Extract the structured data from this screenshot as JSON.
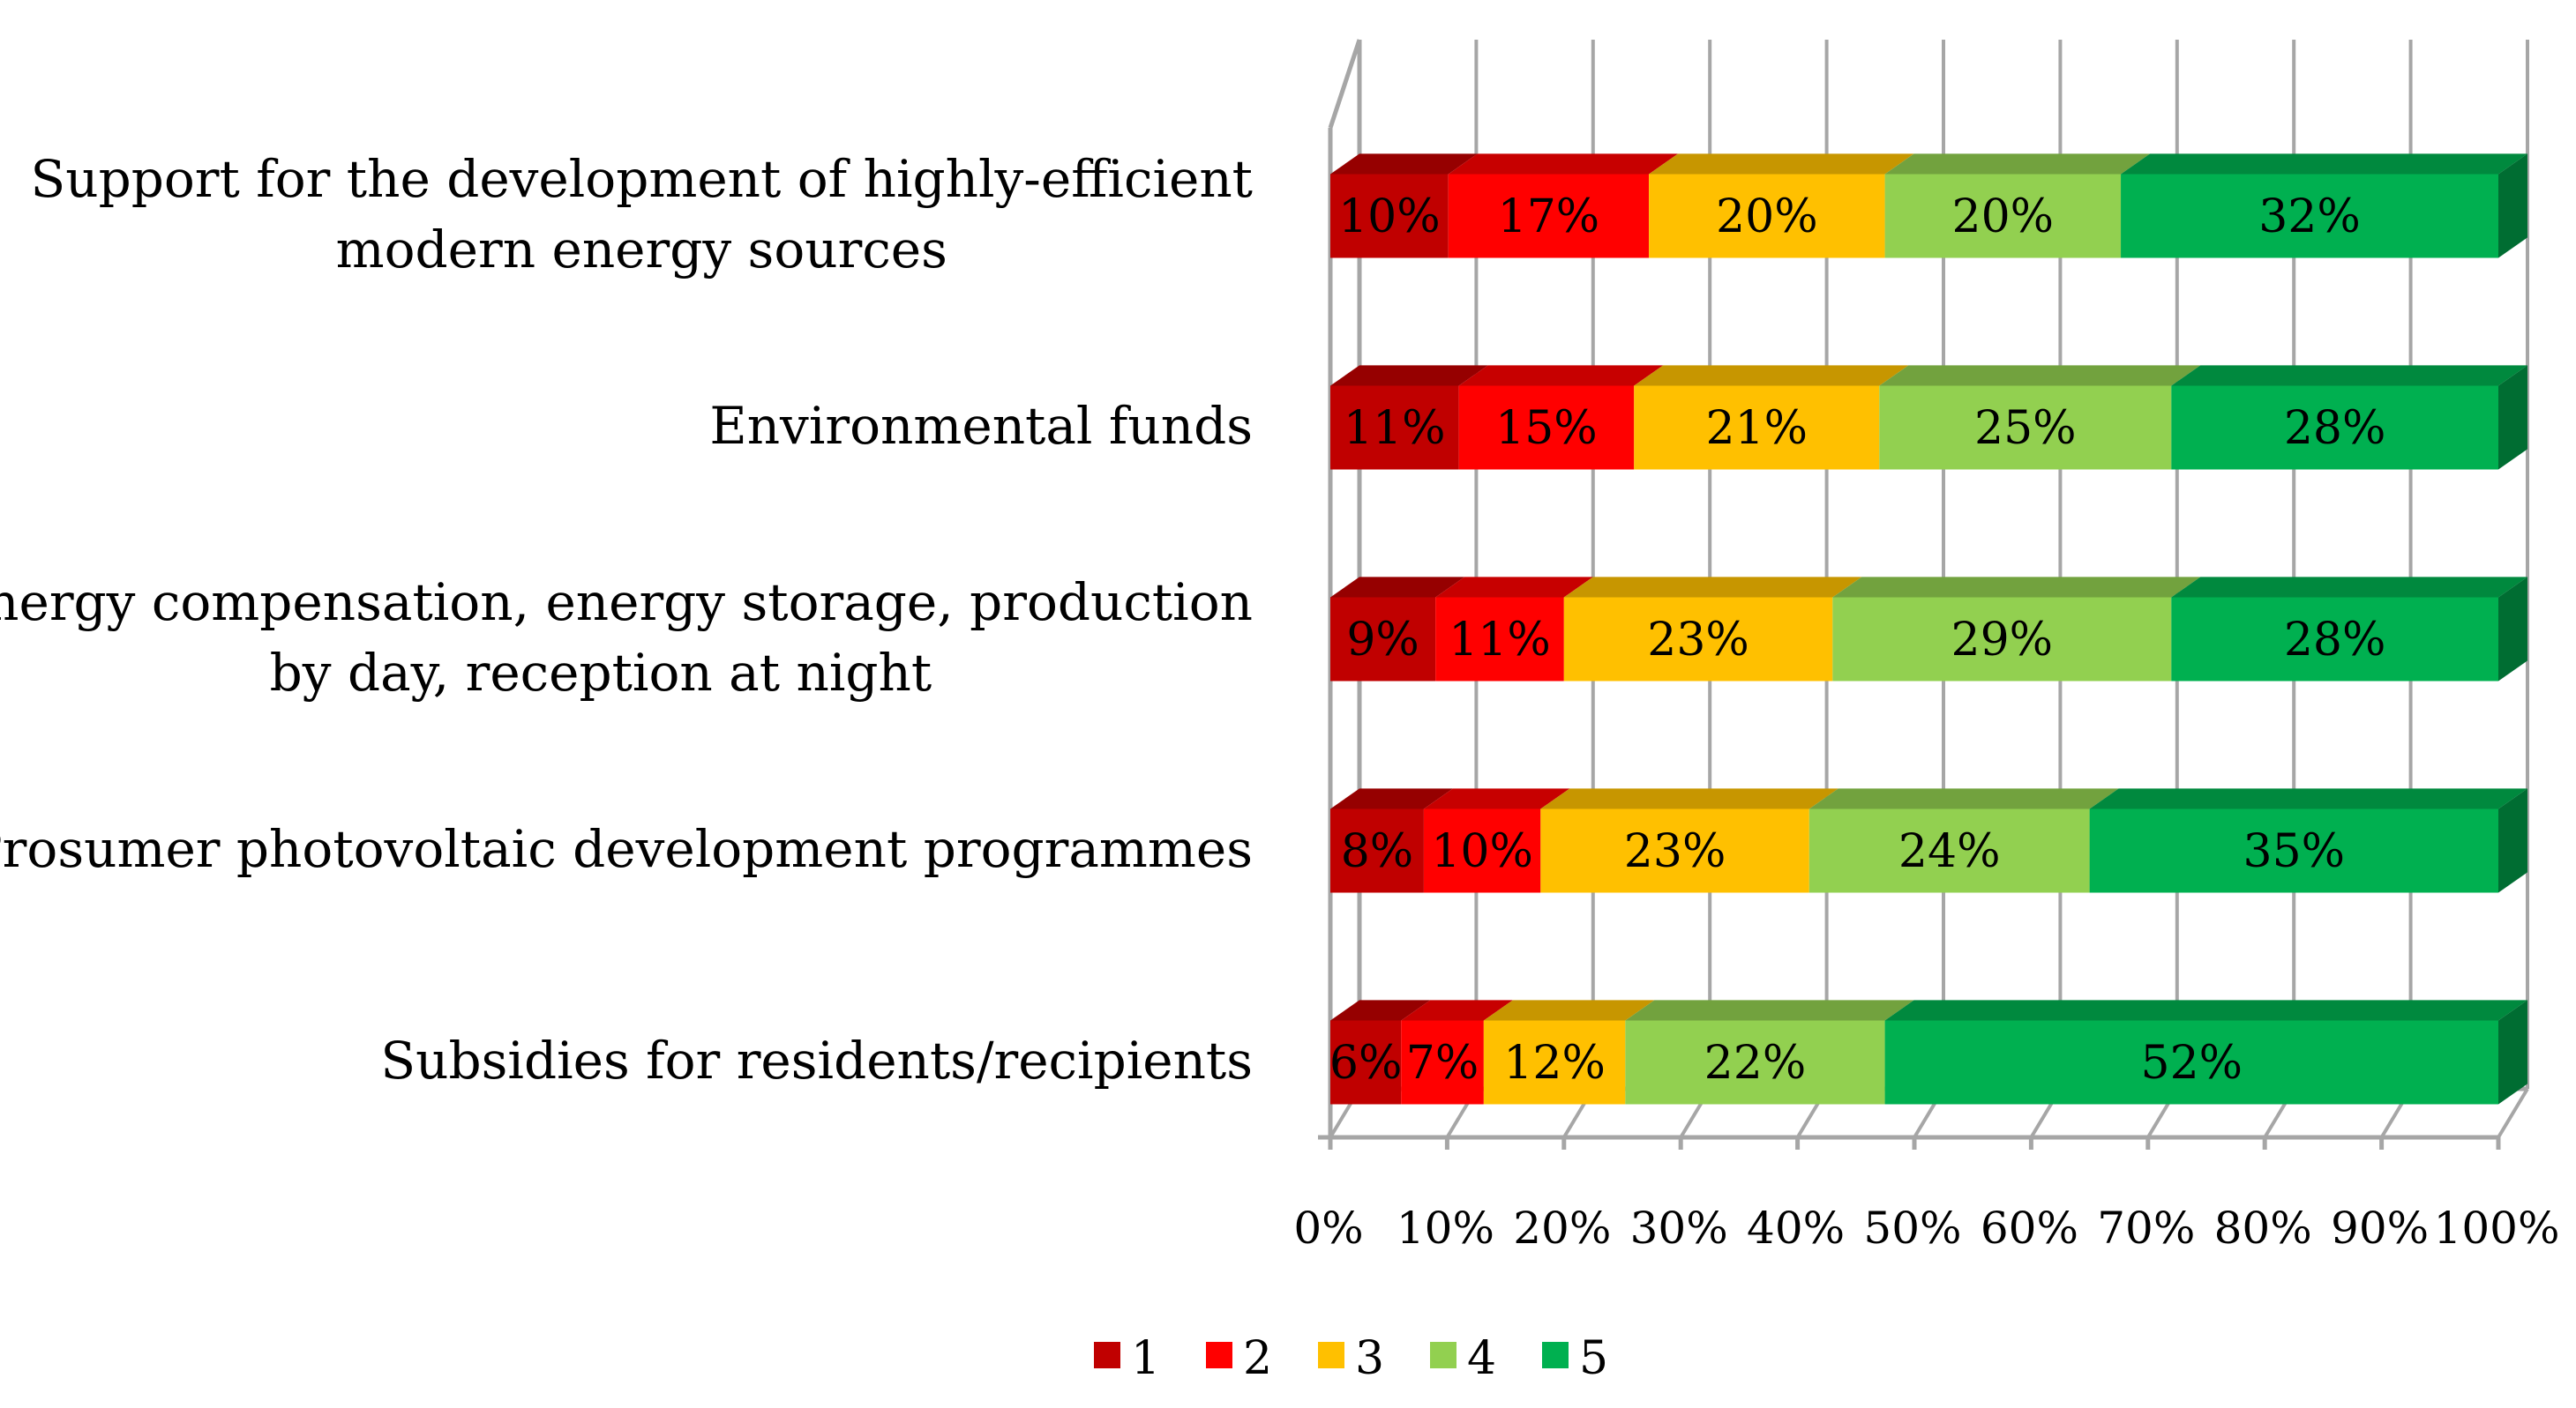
{
  "chart_data": {
    "type": "bar",
    "orientation": "horizontal",
    "stacked": "100%",
    "style": "3d",
    "categories": [
      [
        "Support for the development of highly-efficient",
        "modern energy sources"
      ],
      [
        "Environmental funds"
      ],
      [
        "Energy compensation, energy storage, production",
        "by day, reception at night"
      ],
      [
        "Prosumer photovoltaic development programmes"
      ],
      [
        "Subsidies for residents/recipients"
      ]
    ],
    "series": [
      {
        "name": "1",
        "color": "#c00000",
        "values": [
          10,
          11,
          9,
          8,
          6
        ]
      },
      {
        "name": "2",
        "color": "#ff0000",
        "values": [
          17,
          15,
          11,
          10,
          7
        ]
      },
      {
        "name": "3",
        "color": "#ffc000",
        "values": [
          20,
          21,
          23,
          23,
          12
        ]
      },
      {
        "name": "4",
        "color": "#92d050",
        "values": [
          20,
          25,
          29,
          24,
          22
        ]
      },
      {
        "name": "5",
        "color": "#00b050",
        "values": [
          32,
          28,
          28,
          35,
          52
        ]
      }
    ],
    "data_labels": [
      [
        "10%",
        "17%",
        "20%",
        "20%",
        "32%"
      ],
      [
        "11%",
        "15%",
        "21%",
        "25%",
        "28%"
      ],
      [
        "9%",
        "11%",
        "23%",
        "29%",
        "28%"
      ],
      [
        "8%",
        "10%",
        "23%",
        "24%",
        "35%"
      ],
      [
        "6%",
        "7%",
        "12%",
        "22%",
        "52%"
      ]
    ],
    "x_ticks": [
      "0%",
      "10%",
      "20%",
      "30%",
      "40%",
      "50%",
      "60%",
      "70%",
      "80%",
      "90%",
      "100%"
    ],
    "xlim": [
      0,
      100
    ],
    "grid": true,
    "legend": "bottom-center",
    "title": "",
    "xlabel": "",
    "ylabel": ""
  }
}
